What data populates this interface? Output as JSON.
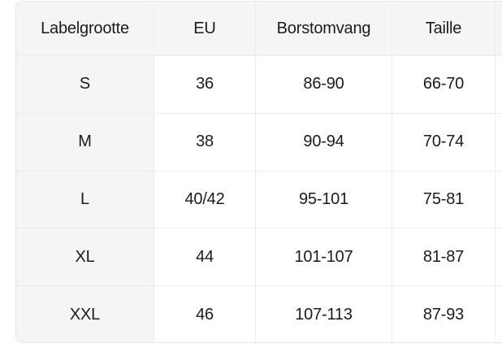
{
  "size_chart": {
    "columns": [
      "Labelgrootte",
      "EU",
      "Borstomvang",
      "Taille"
    ],
    "rows": [
      {
        "label": "S",
        "eu": "36",
        "borstomvang": "86-90",
        "taille": "66-70"
      },
      {
        "label": "M",
        "eu": "38",
        "borstomvang": "90-94",
        "taille": "70-74"
      },
      {
        "label": "L",
        "eu": "40/42",
        "borstomvang": "95-101",
        "taille": "75-81"
      },
      {
        "label": "XL",
        "eu": "44",
        "borstomvang": "101-107",
        "taille": "81-87"
      },
      {
        "label": "XXL",
        "eu": "46",
        "borstomvang": "107-113",
        "taille": "87-93"
      }
    ]
  },
  "colors": {
    "page_background": "#ffffff",
    "header_background": "#f5f5f6",
    "cell_background": "#ffffff",
    "grid_line": "#ececee",
    "card_border": "#e6e6e8",
    "text": "#1b1b1d"
  }
}
